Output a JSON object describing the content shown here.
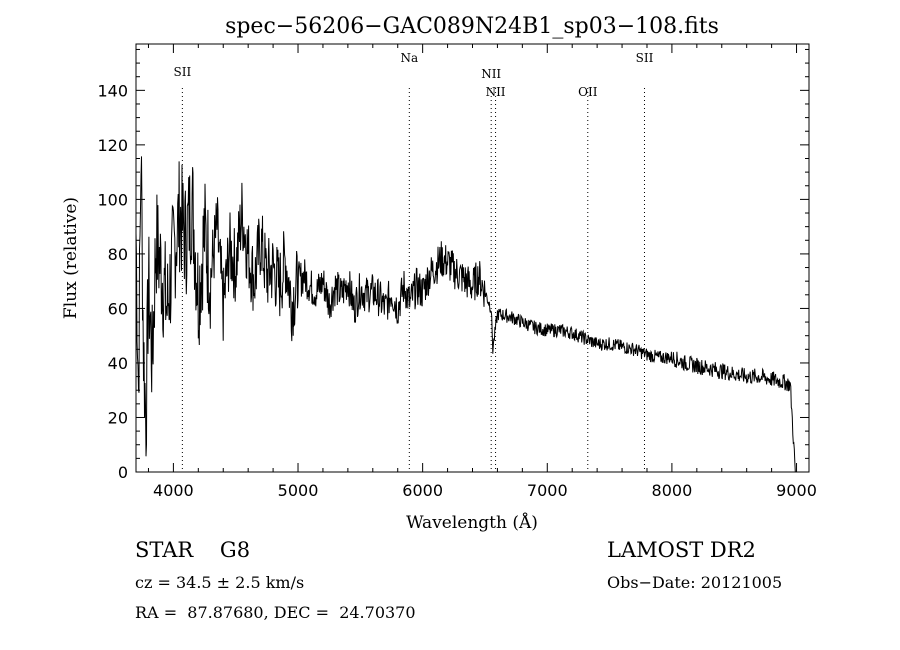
{
  "chart_data": {
    "type": "line",
    "title": "spec−56206−GAC089N24B1_sp03−108.fits",
    "xlabel": "Wavelength (Å)",
    "ylabel": "Flux (relative)",
    "xlim": [
      3700,
      9100
    ],
    "ylim": [
      0,
      157
    ],
    "xticks": [
      4000,
      5000,
      6000,
      7000,
      8000,
      9000
    ],
    "yticks": [
      0,
      20,
      40,
      60,
      80,
      100,
      120,
      140
    ],
    "grid": false,
    "line_color": "#000000",
    "series": [
      {
        "x": [
          3700,
          3720,
          3740,
          3760,
          3780,
          3800,
          3830,
          3860,
          3900,
          3950,
          4000,
          4050,
          4100,
          4150,
          4200,
          4250,
          4300,
          4350,
          4400,
          4450,
          4500,
          4550,
          4600,
          4650,
          4700,
          4750,
          4800,
          4850,
          4900,
          4950,
          5000,
          5050,
          5100,
          5150,
          5200,
          5250,
          5300,
          5350,
          5400,
          5450,
          5500,
          5550,
          5600,
          5650,
          5700,
          5750,
          5800,
          5850,
          5900,
          5950,
          6000,
          6050,
          6100,
          6150,
          6200,
          6250,
          6300,
          6350,
          6400,
          6450,
          6500,
          6550,
          6563,
          6600,
          6700,
          6800,
          6900,
          7000,
          7100,
          7200,
          7300,
          7400,
          7500,
          7600,
          7700,
          7800,
          7900,
          8000,
          8100,
          8200,
          8300,
          8400,
          8500,
          8600,
          8700,
          8800,
          8900,
          8950,
          8990
        ],
        "y": [
          88,
          30,
          118,
          45,
          20,
          70,
          40,
          85,
          75,
          60,
          80,
          95,
          85,
          100,
          65,
          88,
          72,
          90,
          60,
          82,
          75,
          95,
          80,
          70,
          85,
          72,
          75,
          68,
          78,
          62,
          70,
          72,
          68,
          66,
          70,
          62,
          68,
          65,
          70,
          60,
          67,
          65,
          66,
          64,
          60,
          66,
          60,
          68,
          62,
          68,
          66,
          72,
          75,
          78,
          77,
          74,
          72,
          70,
          68,
          72,
          66,
          60,
          45,
          58,
          57,
          55,
          53,
          52,
          52,
          51,
          49,
          47,
          47,
          46,
          45,
          43,
          42,
          42,
          40,
          39,
          38,
          37,
          36,
          35,
          35,
          34,
          33,
          32,
          0
        ]
      }
    ],
    "emission_lines": [
      {
        "label": "SII",
        "x": 4072
      },
      {
        "label": "Na",
        "x": 5893
      },
      {
        "label": "NII",
        "x": 6550
      },
      {
        "label": "NII",
        "x": 6585
      },
      {
        "label": "OII",
        "x": 7325
      },
      {
        "label": "SII",
        "x": 7780
      }
    ]
  },
  "info": {
    "object_class": "STAR    G8",
    "cz": "cz = 34.5 ± 2.5 km/s",
    "radec": "RA =  87.87680, DEC =  24.70370",
    "survey": "LAMOST DR2",
    "obs_date": "Obs−Date: 20121005"
  }
}
